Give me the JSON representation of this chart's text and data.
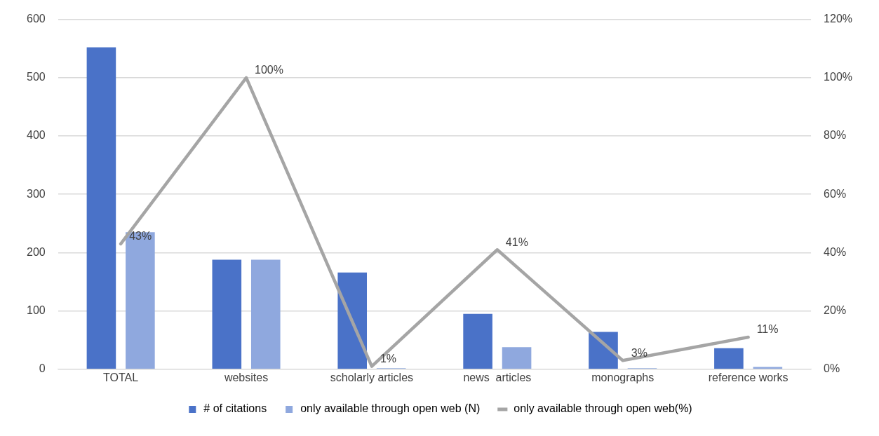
{
  "chart_data": {
    "type": "bar",
    "categories": [
      "TOTAL",
      "websites",
      "scholarly articles",
      "news  articles",
      "monographs",
      "reference works"
    ],
    "series": [
      {
        "name": "# of citations",
        "color": "#4a72c8",
        "values": [
          552,
          188,
          166,
          95,
          64,
          36
        ]
      },
      {
        "name": "only available through open web (N)",
        "color": "#8fa8de",
        "values": [
          235,
          188,
          2,
          38,
          2,
          4
        ]
      },
      {
        "name": "only available through open web(%)",
        "type": "line",
        "axis": "y2",
        "color": "#a5a5a5",
        "values": [
          43,
          100,
          1,
          41,
          3,
          11
        ],
        "value_labels": [
          "43%",
          "100%",
          "1%",
          "41%",
          "3%",
          "11%"
        ]
      }
    ],
    "ylim": [
      0,
      600
    ],
    "yticks": [
      0,
      100,
      200,
      300,
      400,
      500,
      600
    ],
    "y2lim": [
      0,
      120
    ],
    "y2ticks": [
      {
        "value": 0,
        "label": "0%"
      },
      {
        "value": 20,
        "label": "20%"
      },
      {
        "value": 40,
        "label": "40%"
      },
      {
        "value": 60,
        "label": "60%"
      },
      {
        "value": 80,
        "label": "80%"
      },
      {
        "value": 100,
        "label": "100%"
      },
      {
        "value": 120,
        "label": "120%"
      }
    ],
    "grid": "y",
    "legend": "bottom",
    "marker": "none",
    "line_style": "solid"
  }
}
